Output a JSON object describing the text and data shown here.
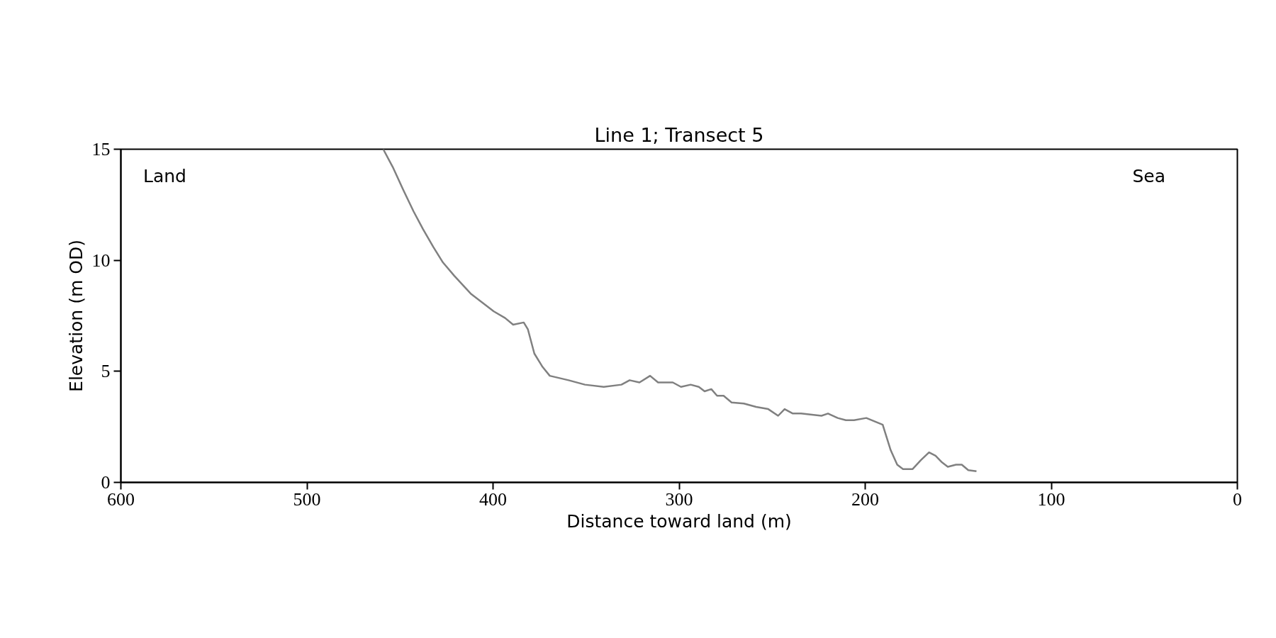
{
  "chart_data": {
    "type": "line",
    "title": "Line 1; Transect 5",
    "xlabel": "Distance toward land (m)",
    "ylabel": "Elevation (m OD)",
    "annotations": [
      "Land",
      "Sea"
    ],
    "x": [
      459,
      453.9,
      448.4,
      442.7,
      437.6,
      432.1,
      426.9,
      420.8,
      416.4,
      412,
      405.8,
      399.6,
      393.5,
      389.2,
      383.5,
      381.3,
      377.8,
      373.4,
      369.5,
      359.4,
      350.6,
      340.5,
      331,
      326.6,
      321.3,
      315.6,
      311.3,
      303.4,
      299,
      293.8,
      289.4,
      286.3,
      282.7,
      279.6,
      276.1,
      271.8,
      265.2,
      258.6,
      252.1,
      246.8,
      243.3,
      238.9,
      234.5,
      223.5,
      220,
      214.8,
      210.4,
      206,
      199.4,
      195,
      190.6,
      186.3,
      182.8,
      179.7,
      174.5,
      170.1,
      165.7,
      162.2,
      158.7,
      155.6,
      151.2,
      148.1,
      144.6,
      140.2
    ],
    "series": [
      {
        "color": "#808080",
        "values": [
          15,
          14.2,
          13.2,
          12.2,
          11.4,
          10.6,
          9.9,
          9.3,
          8.9,
          8.5,
          8.1,
          7.7,
          7.4,
          7.1,
          7.2,
          6.9,
          5.8,
          5.2,
          4.8,
          4.6,
          4.4,
          4.3,
          4.4,
          4.6,
          4.5,
          4.8,
          4.5,
          4.5,
          4.3,
          4.4,
          4.3,
          4.1,
          4.2,
          3.9,
          3.9,
          3.6,
          3.55,
          3.4,
          3.3,
          3.0,
          3.3,
          3.1,
          3.1,
          3.0,
          3.1,
          2.9,
          2.8,
          2.8,
          2.9,
          2.75,
          2.6,
          1.45,
          0.8,
          0.6,
          0.6,
          1.0,
          1.35,
          1.2,
          0.9,
          0.7,
          0.8,
          0.8,
          0.55,
          0.5
        ]
      }
    ],
    "xlim": [
      600,
      0
    ],
    "ylim": [
      0,
      15
    ],
    "xticks": [
      600,
      500,
      400,
      300,
      200,
      100,
      0
    ],
    "yticks": [
      0,
      5,
      10,
      15
    ],
    "line_style": "solid"
  }
}
